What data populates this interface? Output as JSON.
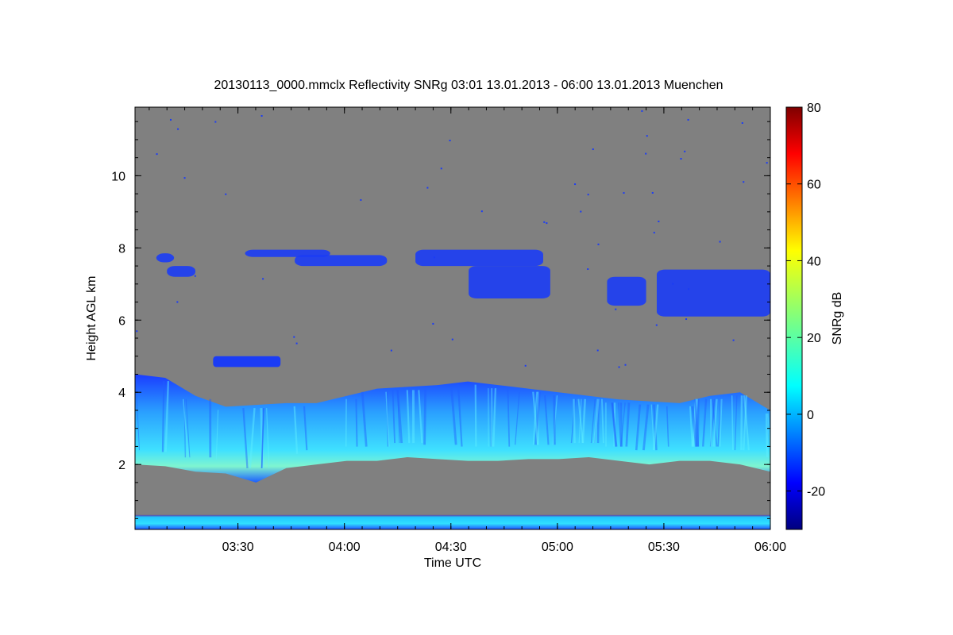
{
  "chart_data": {
    "type": "heatmap",
    "title": "20130113_0000.mmclx Reflectivity SNRg   03:01 13.01.2013 - 06:00 13.01.2013 Muenchen",
    "xlabel": "Time UTC",
    "ylabel": "Height AGL km",
    "colorbar_label": "SNRg dB",
    "x_ticks": [
      "03:30",
      "04:00",
      "04:30",
      "05:00",
      "05:30",
      "06:00"
    ],
    "xlim": [
      "03:01",
      "06:00"
    ],
    "y_ticks": [
      2,
      4,
      6,
      8,
      10
    ],
    "ylim": [
      0.2,
      11.9
    ],
    "colorbar_ticks": [
      -20,
      0,
      20,
      40,
      60,
      80
    ],
    "colorbar_range": [
      -30,
      80
    ],
    "background_color": "#808080",
    "features": [
      {
        "name": "main cloud layer",
        "time_range": [
          "03:01",
          "06:00"
        ],
        "height_range_km": [
          1.7,
          4.3
        ],
        "snr_range_db": [
          -20,
          10
        ]
      },
      {
        "name": "upper cloud layer",
        "time_range": [
          "03:07",
          "06:00"
        ],
        "height_range_km": [
          6.0,
          8.0
        ],
        "snr_range_db": [
          -25,
          -10
        ]
      },
      {
        "name": "mid-level cloud patch",
        "time_range": [
          "03:23",
          "03:42"
        ],
        "height_range_km": [
          4.7,
          5.0
        ],
        "snr_range_db": [
          -25,
          -15
        ]
      },
      {
        "name": "near-surface clutter",
        "time_range": [
          "03:01",
          "06:00"
        ],
        "height_range_km": [
          0.2,
          0.6
        ],
        "snr_range_db": [
          -15,
          5
        ]
      }
    ]
  }
}
